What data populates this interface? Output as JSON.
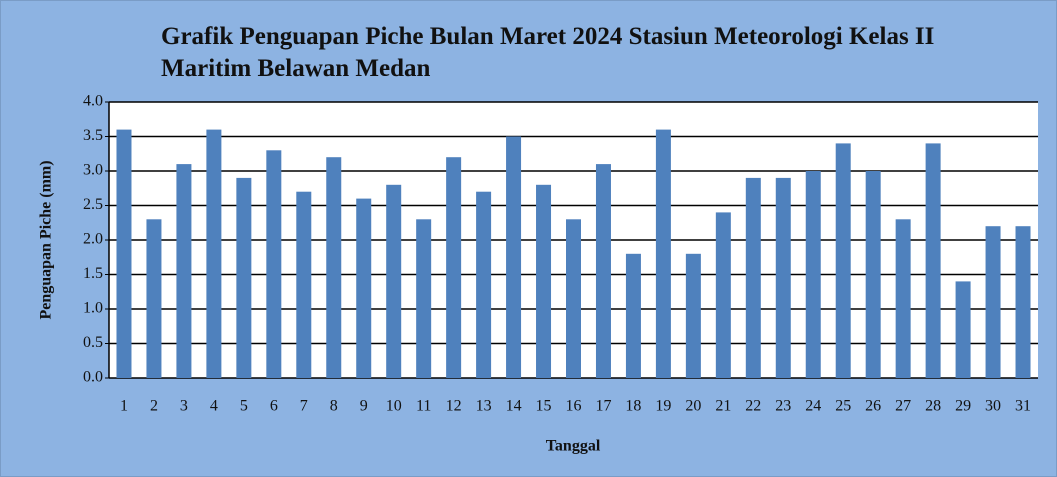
{
  "chart_data": {
    "type": "bar",
    "title": "Grafik Penguapan Piche Bulan Maret 2024 Stasiun Meteorologi Kelas II Maritim Belawan Medan",
    "x_label": "Tanggal",
    "y_label": "Penguapan Piche (mm)",
    "categories": [
      "1",
      "2",
      "3",
      "4",
      "5",
      "6",
      "7",
      "8",
      "9",
      "10",
      "11",
      "12",
      "13",
      "14",
      "15",
      "16",
      "17",
      "18",
      "19",
      "20",
      "21",
      "22",
      "23",
      "24",
      "25",
      "26",
      "27",
      "28",
      "29",
      "30",
      "31"
    ],
    "values": [
      3.6,
      2.3,
      3.1,
      3.6,
      2.9,
      3.3,
      2.7,
      3.2,
      2.6,
      2.8,
      2.3,
      3.2,
      2.7,
      3.5,
      2.8,
      2.3,
      3.1,
      1.8,
      3.6,
      1.8,
      2.4,
      2.9,
      2.9,
      3.0,
      3.4,
      3.0,
      2.3,
      3.4,
      1.4,
      2.2,
      2.2
    ],
    "color": "#4f81bd",
    "ylim": [
      0,
      4
    ],
    "yticks": [
      {
        "value": 0,
        "label": "0.0"
      },
      0.5,
      {
        "value": 1,
        "label": "1.0"
      },
      1.5,
      {
        "value": 2,
        "label": "2.0"
      },
      2.5,
      {
        "value": 3,
        "label": "3.0"
      },
      3.5,
      {
        "value": 4,
        "label": "4.0"
      }
    ],
    "grid": true
  }
}
